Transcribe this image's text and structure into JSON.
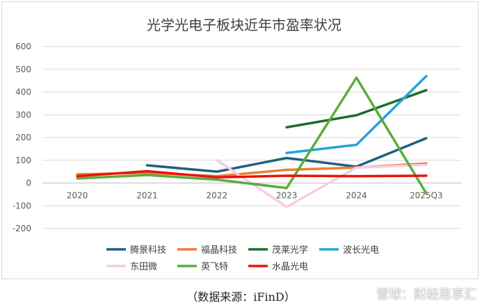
{
  "chart_data": {
    "type": "line",
    "title": "光学光电子板块近年市盈率状况",
    "categories": [
      "2020",
      "2021",
      "2022",
      "2023",
      "2024",
      "2025Q3"
    ],
    "y_ticks": [
      "600",
      "500",
      "400",
      "300",
      "200",
      "100",
      "0",
      "-100",
      "-200"
    ],
    "ylim": [
      -200,
      600
    ],
    "grid": true,
    "legend_placement": "bottom",
    "series": [
      {
        "name": "腾景科技",
        "color": "#1f5f80",
        "values": [
          null,
          78,
          50,
          110,
          72,
          197
        ]
      },
      {
        "name": "福晶科技",
        "color": "#ed7d31",
        "values": [
          38,
          45,
          30,
          58,
          68,
          86
        ]
      },
      {
        "name": "茂莱光学",
        "color": "#1e6b2d",
        "values": [
          null,
          null,
          null,
          245,
          298,
          408
        ]
      },
      {
        "name": "波长光电",
        "color": "#22a3dc",
        "values": [
          null,
          null,
          null,
          132,
          168,
          470
        ]
      },
      {
        "name": "东田微",
        "color": "#f4cce8",
        "values": [
          null,
          null,
          100,
          -105,
          68,
          80
        ]
      },
      {
        "name": "英飞特",
        "color": "#5aad3c",
        "values": [
          20,
          35,
          15,
          -22,
          463,
          -45
        ]
      },
      {
        "name": "水晶光电",
        "color": "#e8140a",
        "values": [
          30,
          52,
          25,
          32,
          30,
          32
        ]
      }
    ]
  },
  "source_note": "（数据来源：iFinD）",
  "watermark": "雪球：财经思享汇"
}
